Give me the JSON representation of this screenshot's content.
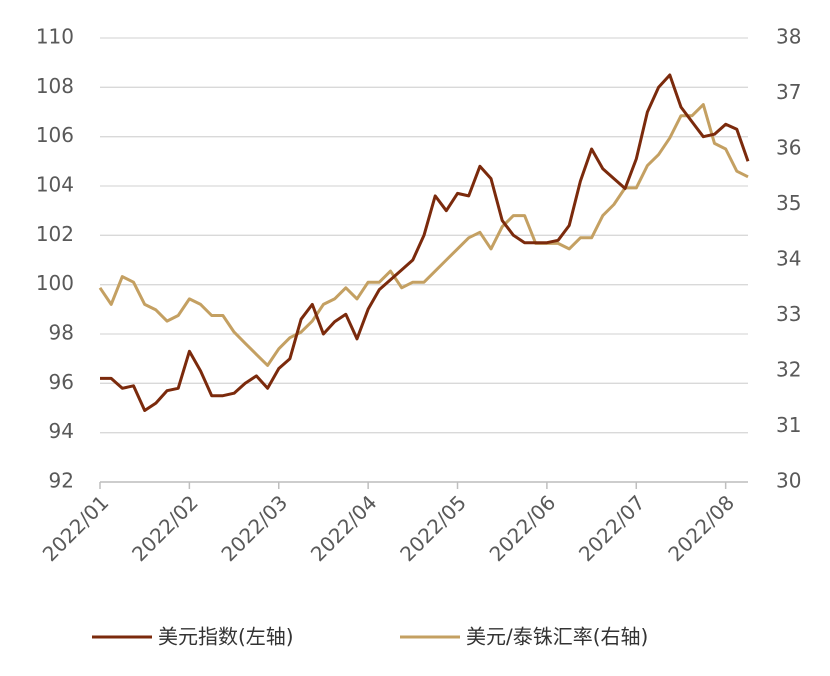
{
  "chart_data": {
    "type": "line",
    "categories": [
      "2022/01",
      null,
      null,
      null,
      null,
      null,
      null,
      null,
      "2022/02",
      null,
      null,
      null,
      null,
      null,
      null,
      null,
      "2022/03",
      null,
      null,
      null,
      null,
      null,
      null,
      null,
      "2022/04",
      null,
      null,
      null,
      null,
      null,
      null,
      null,
      "2022/05",
      null,
      null,
      null,
      null,
      null,
      null,
      null,
      "2022/06",
      null,
      null,
      null,
      null,
      null,
      null,
      null,
      "2022/07",
      null,
      null,
      null,
      null,
      null,
      null,
      null,
      "2022/08",
      null,
      null
    ],
    "series": [
      {
        "name": "美元指数(左轴)",
        "color": "#7b2a0c",
        "values": [
          96.2,
          96.2,
          95.8,
          95.9,
          94.9,
          95.2,
          95.7,
          95.8,
          97.3,
          96.5,
          95.5,
          95.5,
          95.6,
          96.0,
          96.3,
          95.8,
          96.6,
          97.0,
          98.6,
          99.2,
          98.0,
          98.5,
          98.8,
          97.8,
          99.0,
          99.8,
          100.2,
          100.6,
          101.0,
          102.0,
          103.6,
          103.0,
          103.7,
          103.6,
          104.8,
          104.3,
          102.6,
          102.0,
          101.7,
          101.7,
          101.7,
          101.8,
          102.4,
          104.2,
          105.5,
          104.7,
          104.3,
          103.9,
          105.1,
          107.0,
          108.0,
          108.5,
          107.2,
          106.6,
          106.0,
          106.1,
          106.5,
          106.3,
          105.0
        ]
      },
      {
        "name": "美元/泰铢汇率(右轴)",
        "color": "#c4a062",
        "axis": "y2",
        "values": [
          33.5,
          33.2,
          33.7,
          33.6,
          33.2,
          33.1,
          32.9,
          33.0,
          33.3,
          33.2,
          33.0,
          33.0,
          32.7,
          32.5,
          32.3,
          32.1,
          32.4,
          32.6,
          32.7,
          32.9,
          33.2,
          33.3,
          33.5,
          33.3,
          33.6,
          33.6,
          33.8,
          33.5,
          33.6,
          33.6,
          33.8,
          34.0,
          34.2,
          34.4,
          34.5,
          34.2,
          34.6,
          34.8,
          34.8,
          34.3,
          34.3,
          34.3,
          34.2,
          34.4,
          34.4,
          34.8,
          35.0,
          35.3,
          35.3,
          35.7,
          35.9,
          36.2,
          36.6,
          36.6,
          36.8,
          36.1,
          36.0,
          35.6,
          35.5
        ]
      }
    ],
    "ylim": [
      92,
      110
    ],
    "yticks": [
      92,
      94,
      96,
      98,
      100,
      102,
      104,
      106,
      108,
      110
    ],
    "y2lim": [
      30,
      38
    ],
    "y2ticks": [
      30,
      31,
      32,
      33,
      34,
      35,
      36,
      37,
      38
    ],
    "grid": true,
    "legend": "bottom"
  }
}
